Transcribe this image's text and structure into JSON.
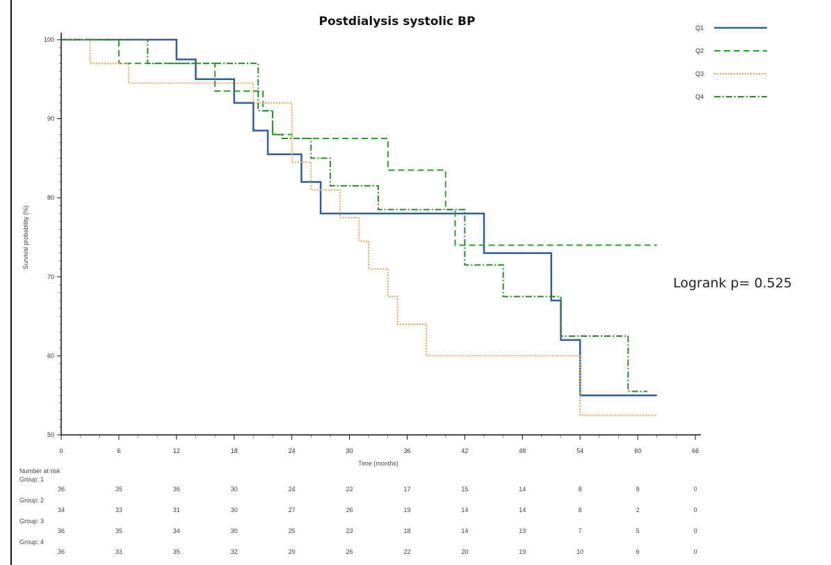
{
  "chart_data": {
    "type": "line",
    "subtype": "kaplan-meier",
    "title": "Postdialysis systolic BP",
    "xlabel": "Time (months)",
    "ylabel": "Survival probability (%)",
    "xlim": [
      0,
      66
    ],
    "ylim": [
      50,
      100
    ],
    "xticks": [
      0,
      6,
      12,
      18,
      24,
      30,
      36,
      42,
      48,
      54,
      60,
      66
    ],
    "yticks": [
      50,
      60,
      70,
      80,
      90,
      100
    ],
    "legend_position": "top-right",
    "annotation": "Logrank p= 0.525",
    "series": [
      {
        "name": "Q1",
        "color": "#2e5e9e",
        "dash": "solid",
        "x": [
          0,
          12,
          14,
          18,
          20,
          21.5,
          22,
          25,
          27,
          44,
          51,
          52,
          54,
          62
        ],
        "y": [
          100,
          97.5,
          95,
          92,
          88.5,
          85.5,
          85.5,
          82,
          78,
          73,
          67,
          62,
          55,
          55
        ]
      },
      {
        "name": "Q2",
        "color": "#2e9e2e",
        "dash": "dashed",
        "x": [
          0,
          6,
          16,
          21,
          22,
          24,
          34,
          40,
          41,
          62
        ],
        "y": [
          100,
          97,
          93.5,
          91,
          88,
          87.5,
          83.5,
          78.5,
          74,
          74
        ]
      },
      {
        "name": "Q3",
        "color": "#f0a050",
        "dash": "dotted",
        "x": [
          0,
          3,
          7,
          20,
          24,
          26,
          29,
          31,
          32,
          34,
          35,
          38,
          54,
          62
        ],
        "y": [
          100,
          97,
          94.5,
          92,
          84.5,
          81,
          77.5,
          74.5,
          71,
          67.5,
          64,
          60,
          52.5,
          52.5
        ]
      },
      {
        "name": "Q4",
        "color": "#2e8a2e",
        "dash": "dashdot",
        "x": [
          0,
          9,
          20.5,
          22,
          23,
          26,
          28,
          33,
          42,
          46,
          52,
          59,
          61
        ],
        "y": [
          100,
          97,
          91,
          88,
          87.5,
          85,
          81.5,
          78.5,
          71.5,
          67.5,
          62.5,
          55.5,
          55.5
        ]
      }
    ],
    "risk_table": {
      "header": "Number at risk",
      "times": [
        0,
        6,
        12,
        18,
        24,
        30,
        36,
        42,
        48,
        54,
        60,
        66
      ],
      "groups": [
        {
          "label": "Group: 1",
          "color": "#555",
          "values": [
            "36",
            "35",
            "36",
            "30",
            "24",
            "22",
            "17",
            "15",
            "14",
            "8",
            "8",
            "0"
          ]
        },
        {
          "label": "Group: 2",
          "color": "#3f5fa0",
          "values": [
            "34",
            "33",
            "31",
            "30",
            "27",
            "26",
            "19",
            "14",
            "14",
            "8",
            "2",
            "0"
          ]
        },
        {
          "label": "Group: 3",
          "color": "#555",
          "values": [
            "36",
            "35",
            "34",
            "30",
            "25",
            "23",
            "18",
            "14",
            "13",
            "7",
            "5",
            "0"
          ]
        },
        {
          "label": "Group: 4",
          "color": "#3f5fa0",
          "values": [
            "36",
            "33",
            "35",
            "32",
            "29",
            "26",
            "22",
            "20",
            "19",
            "10",
            "6",
            "0"
          ]
        }
      ]
    }
  }
}
